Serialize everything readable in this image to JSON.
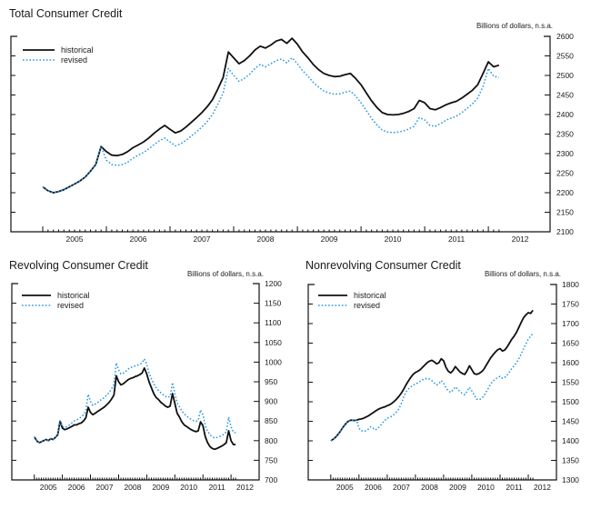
{
  "page": {
    "background": "#ffffff"
  },
  "colors": {
    "historical": "#101010",
    "revised": "#2896e6",
    "axis": "#111111",
    "text": "#1a1a1a"
  },
  "chart_data": [
    {
      "type": "line",
      "title": "Total Consumer Credit",
      "unit_label": "Billions of dollars, n.s.a.",
      "legend": [
        {
          "label": "historical"
        },
        {
          "label": "revised"
        }
      ],
      "legend_position": "top-left-inside",
      "grid": false,
      "x_axis": {
        "start_year": 2005,
        "interval": "monthly",
        "points": 87,
        "year_labels": [
          "2005",
          "2006",
          "2007",
          "2008",
          "2009",
          "2010",
          "2011",
          "2012"
        ]
      },
      "y_axis": {
        "min": 2100,
        "max": 2600,
        "tick_step": 50,
        "labels_side": "right"
      },
      "series": [
        {
          "name": "historical",
          "style": "solid-black",
          "values": [
            2215,
            2205,
            2200,
            2203,
            2208,
            2215,
            2222,
            2230,
            2240,
            2255,
            2272,
            2318,
            2305,
            2296,
            2295,
            2298,
            2305,
            2315,
            2322,
            2330,
            2340,
            2352,
            2363,
            2372,
            2362,
            2353,
            2358,
            2368,
            2380,
            2392,
            2405,
            2420,
            2438,
            2465,
            2495,
            2560,
            2545,
            2530,
            2538,
            2550,
            2565,
            2575,
            2570,
            2578,
            2588,
            2592,
            2582,
            2595,
            2580,
            2560,
            2545,
            2528,
            2515,
            2505,
            2500,
            2497,
            2498,
            2502,
            2505,
            2492,
            2476,
            2455,
            2435,
            2418,
            2405,
            2400,
            2399,
            2400,
            2403,
            2408,
            2415,
            2436,
            2430,
            2415,
            2412,
            2418,
            2425,
            2430,
            2434,
            2442,
            2452,
            2462,
            2476,
            2505,
            2535,
            2522,
            2526
          ]
        },
        {
          "name": "revised",
          "style": "dotted-blue",
          "values": [
            2215,
            2205,
            2200,
            2203,
            2208,
            2215,
            2222,
            2230,
            2240,
            2255,
            2272,
            2318,
            2283,
            2272,
            2270,
            2272,
            2278,
            2288,
            2296,
            2303,
            2312,
            2323,
            2333,
            2340,
            2330,
            2320,
            2325,
            2334,
            2345,
            2356,
            2368,
            2382,
            2400,
            2426,
            2455,
            2518,
            2500,
            2485,
            2492,
            2503,
            2518,
            2528,
            2522,
            2530,
            2538,
            2542,
            2532,
            2545,
            2530,
            2512,
            2498,
            2482,
            2470,
            2460,
            2455,
            2452,
            2453,
            2457,
            2460,
            2447,
            2430,
            2410,
            2390,
            2373,
            2360,
            2355,
            2354,
            2355,
            2358,
            2363,
            2370,
            2392,
            2386,
            2372,
            2370,
            2377,
            2385,
            2391,
            2396,
            2405,
            2416,
            2427,
            2442,
            2472,
            2518,
            2498,
            2495
          ]
        }
      ]
    },
    {
      "type": "line",
      "title": "Revolving Consumer Credit",
      "unit_label": "Billions of dollars, n.s.a.",
      "legend": [
        {
          "label": "historical"
        },
        {
          "label": "revised"
        }
      ],
      "legend_position": "top-left-inside",
      "grid": false,
      "x_axis": {
        "start_year": 2005,
        "interval": "monthly",
        "points": 87,
        "year_labels": [
          "2005",
          "2006",
          "2007",
          "2008",
          "2009",
          "2010",
          "2011",
          "2012"
        ]
      },
      "y_axis": {
        "min": 700,
        "max": 1200,
        "tick_step": 50,
        "labels_side": "right"
      },
      "series": [
        {
          "name": "historical",
          "style": "solid-black",
          "values": [
            810,
            800,
            795,
            797,
            800,
            803,
            800,
            805,
            803,
            808,
            815,
            850,
            832,
            828,
            830,
            833,
            836,
            840,
            840,
            843,
            845,
            850,
            858,
            885,
            872,
            866,
            870,
            874,
            878,
            882,
            886,
            892,
            898,
            906,
            916,
            965,
            950,
            942,
            945,
            950,
            955,
            958,
            960,
            963,
            965,
            968,
            972,
            985,
            970,
            950,
            935,
            920,
            910,
            905,
            898,
            893,
            888,
            885,
            888,
            920,
            895,
            870,
            860,
            848,
            840,
            836,
            832,
            828,
            825,
            823,
            825,
            848,
            838,
            810,
            795,
            785,
            780,
            778,
            780,
            783,
            786,
            790,
            795,
            825,
            800,
            790,
            790
          ]
        },
        {
          "name": "revised",
          "style": "dotted-blue",
          "values": [
            810,
            800,
            795,
            797,
            800,
            803,
            800,
            805,
            803,
            808,
            815,
            850,
            836,
            833,
            836,
            840,
            845,
            850,
            852,
            856,
            860,
            866,
            875,
            918,
            900,
            890,
            893,
            897,
            902,
            906,
            910,
            917,
            923,
            932,
            943,
            998,
            980,
            970,
            972,
            976,
            982,
            986,
            988,
            990,
            992,
            994,
            998,
            1008,
            995,
            972,
            958,
            945,
            935,
            928,
            922,
            917,
            913,
            910,
            913,
            948,
            920,
            897,
            886,
            875,
            868,
            863,
            858,
            854,
            851,
            849,
            852,
            878,
            866,
            838,
            824,
            815,
            810,
            807,
            808,
            810,
            813,
            817,
            822,
            860,
            835,
            822,
            820
          ]
        }
      ]
    },
    {
      "type": "line",
      "title": "Nonrevolving Consumer Credit",
      "unit_label": "Billions of dollars, n.s.a.",
      "legend": [
        {
          "label": "historical"
        },
        {
          "label": "revised"
        }
      ],
      "legend_position": "top-left-inside",
      "grid": false,
      "x_axis": {
        "start_year": 2005,
        "interval": "monthly",
        "points": 87,
        "year_labels": [
          "2005",
          "2006",
          "2007",
          "2008",
          "2009",
          "2010",
          "2011",
          "2012"
        ]
      },
      "y_axis": {
        "min": 1300,
        "max": 1800,
        "tick_step": 50,
        "labels_side": "right"
      },
      "series": [
        {
          "name": "historical",
          "style": "solid-black",
          "values": [
            1400,
            1404,
            1409,
            1416,
            1424,
            1433,
            1441,
            1448,
            1452,
            1453,
            1452,
            1453,
            1455,
            1456,
            1458,
            1461,
            1464,
            1468,
            1472,
            1476,
            1480,
            1483,
            1485,
            1487,
            1490,
            1492,
            1496,
            1501,
            1507,
            1514,
            1522,
            1532,
            1543,
            1553,
            1562,
            1570,
            1575,
            1578,
            1582,
            1588,
            1594,
            1600,
            1604,
            1606,
            1602,
            1597,
            1600,
            1610,
            1605,
            1588,
            1578,
            1574,
            1580,
            1590,
            1583,
            1576,
            1572,
            1570,
            1580,
            1592,
            1582,
            1572,
            1570,
            1572,
            1576,
            1582,
            1592,
            1602,
            1612,
            1620,
            1627,
            1633,
            1636,
            1630,
            1632,
            1640,
            1650,
            1660,
            1668,
            1678,
            1690,
            1703,
            1715,
            1722,
            1728,
            1726,
            1734
          ]
        },
        {
          "name": "revised",
          "style": "dotted-blue",
          "values": [
            1400,
            1404,
            1409,
            1416,
            1424,
            1433,
            1441,
            1448,
            1452,
            1453,
            1452,
            1453,
            1432,
            1426,
            1424,
            1426,
            1430,
            1436,
            1432,
            1428,
            1432,
            1438,
            1446,
            1452,
            1458,
            1460,
            1463,
            1468,
            1474,
            1482,
            1495,
            1512,
            1525,
            1532,
            1538,
            1542,
            1546,
            1548,
            1552,
            1556,
            1558,
            1560,
            1558,
            1554,
            1548,
            1543,
            1546,
            1554,
            1548,
            1535,
            1528,
            1524,
            1530,
            1538,
            1532,
            1526,
            1521,
            1518,
            1527,
            1537,
            1528,
            1518,
            1507,
            1505,
            1508,
            1514,
            1524,
            1534,
            1545,
            1553,
            1558,
            1562,
            1565,
            1560,
            1562,
            1568,
            1576,
            1585,
            1592,
            1600,
            1610,
            1622,
            1635,
            1648,
            1660,
            1668,
            1675
          ]
        }
      ]
    }
  ]
}
